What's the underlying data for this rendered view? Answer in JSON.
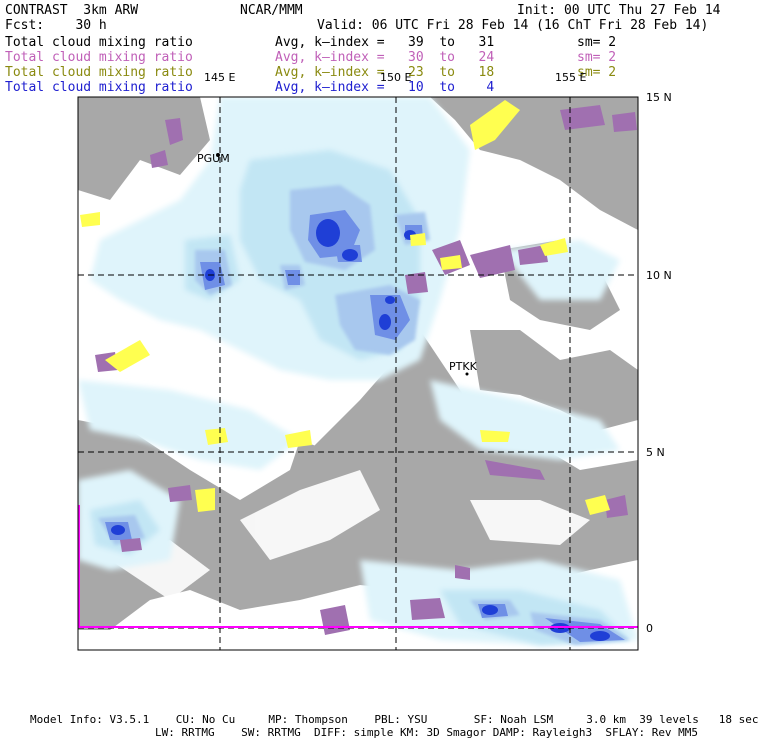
{
  "header": {
    "model": "CONTRAST  3km ARW",
    "org": "NCAR/MMM",
    "init": "Init: 00 UTC Thu 27 Feb 14",
    "fcst": "Fcst:    30 h",
    "valid": "Valid: 06 UTC Fri 28 Feb 14 (16 ChT Fri 28 Feb 14)"
  },
  "legend": [
    {
      "label": "Total cloud mixing ratio",
      "range": "Avg, k–index =   39  to   31",
      "sm": "sm= 2",
      "color": "#000000"
    },
    {
      "label": "Total cloud mixing ratio",
      "range": "Avg, k–index =   30  to   24",
      "sm": "sm= 2",
      "color": "#c060b8"
    },
    {
      "label": "Total cloud mixing ratio",
      "range": "Avg, k–index =   23  to   18",
      "sm": "sm= 2",
      "color": "#8a8a10"
    },
    {
      "label": "Total cloud mixing ratio",
      "range": "Avg, k–index =   10  to    4",
      "sm": "",
      "color": "#2020d0"
    }
  ],
  "map": {
    "lon_labels": [
      "145 E",
      "150 E",
      "155 E"
    ],
    "lat_labels": [
      "15 N",
      "10 N",
      "5 N",
      "0"
    ],
    "stations": [
      "PGUM",
      "PTKK"
    ],
    "colors": {
      "gray_layer": "#a8a8a8",
      "light_cyan": "#dff4fb",
      "cyan": "#c2e6f4",
      "light_blue": "#a8c8ee",
      "blue": "#6f8fe6",
      "dark_blue": "#1f3fd6",
      "purple": "#a070b0",
      "yellow": "#ffff50",
      "magenta_line": "#ff00ff"
    }
  },
  "footer": {
    "line1": "Model Info: V3.5.1    CU: No Cu     MP: Thompson    PBL: YSU       SF: Noah LSM     3.0 km  39 levels   18 sec",
    "line2": "LW: RRTMG    SW: RRTMG  DIFF: simple KM: 3D Smagor DAMP: Rayleigh3  SFLAY: Rev MM5"
  }
}
